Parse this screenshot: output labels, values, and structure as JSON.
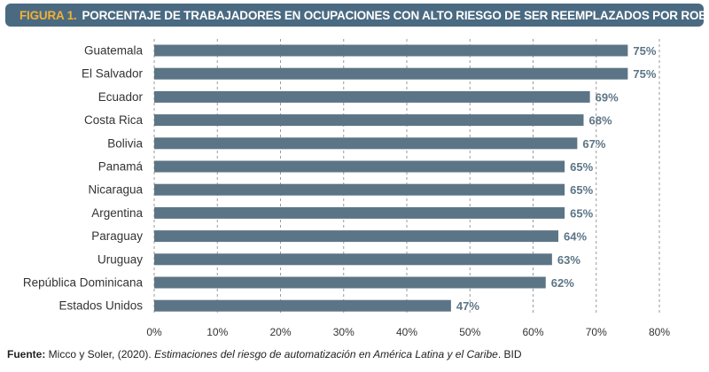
{
  "title": {
    "prefix": "FIGURA 1.",
    "text": "PORCENTAJE DE TRABAJADORES EN OCUPACIONES CON ALTO RIESGO DE SER REEMPLAZADOS POR ROBOTS"
  },
  "colors": {
    "title_background": "#4a6a82",
    "title_prefix": "#f2b134",
    "bar": "#5c7586",
    "value_label": "#5c7586",
    "grid": "#9a9a9a"
  },
  "chart_data": {
    "type": "bar",
    "orientation": "horizontal",
    "categories": [
      "Guatemala",
      "El Salvador",
      "Ecuador",
      "Costa Rica",
      "Bolivia",
      "Panamá",
      "Nicaragua",
      "Argentina",
      "Paraguay",
      "Uruguay",
      "República Dominicana",
      "Estados Unidos"
    ],
    "values": [
      75,
      75,
      69,
      68,
      67,
      65,
      65,
      65,
      64,
      63,
      62,
      47
    ],
    "value_labels": [
      "75%",
      "75%",
      "69%",
      "68%",
      "67%",
      "65%",
      "65%",
      "65%",
      "64%",
      "63%",
      "62%",
      "47%"
    ],
    "xticks": [
      "0%",
      "10%",
      "20%",
      "30%",
      "40%",
      "50%",
      "60%",
      "70%",
      "80%"
    ],
    "xlim": [
      0,
      80
    ],
    "grid": true,
    "xlabel": "",
    "ylabel": ""
  },
  "source": {
    "label": "Fuente:",
    "authors": " Micco y Soler, (2020). ",
    "work": "Estimaciones del riesgo de automatización en América Latina y el Caribe",
    "publisher": ". BID"
  }
}
